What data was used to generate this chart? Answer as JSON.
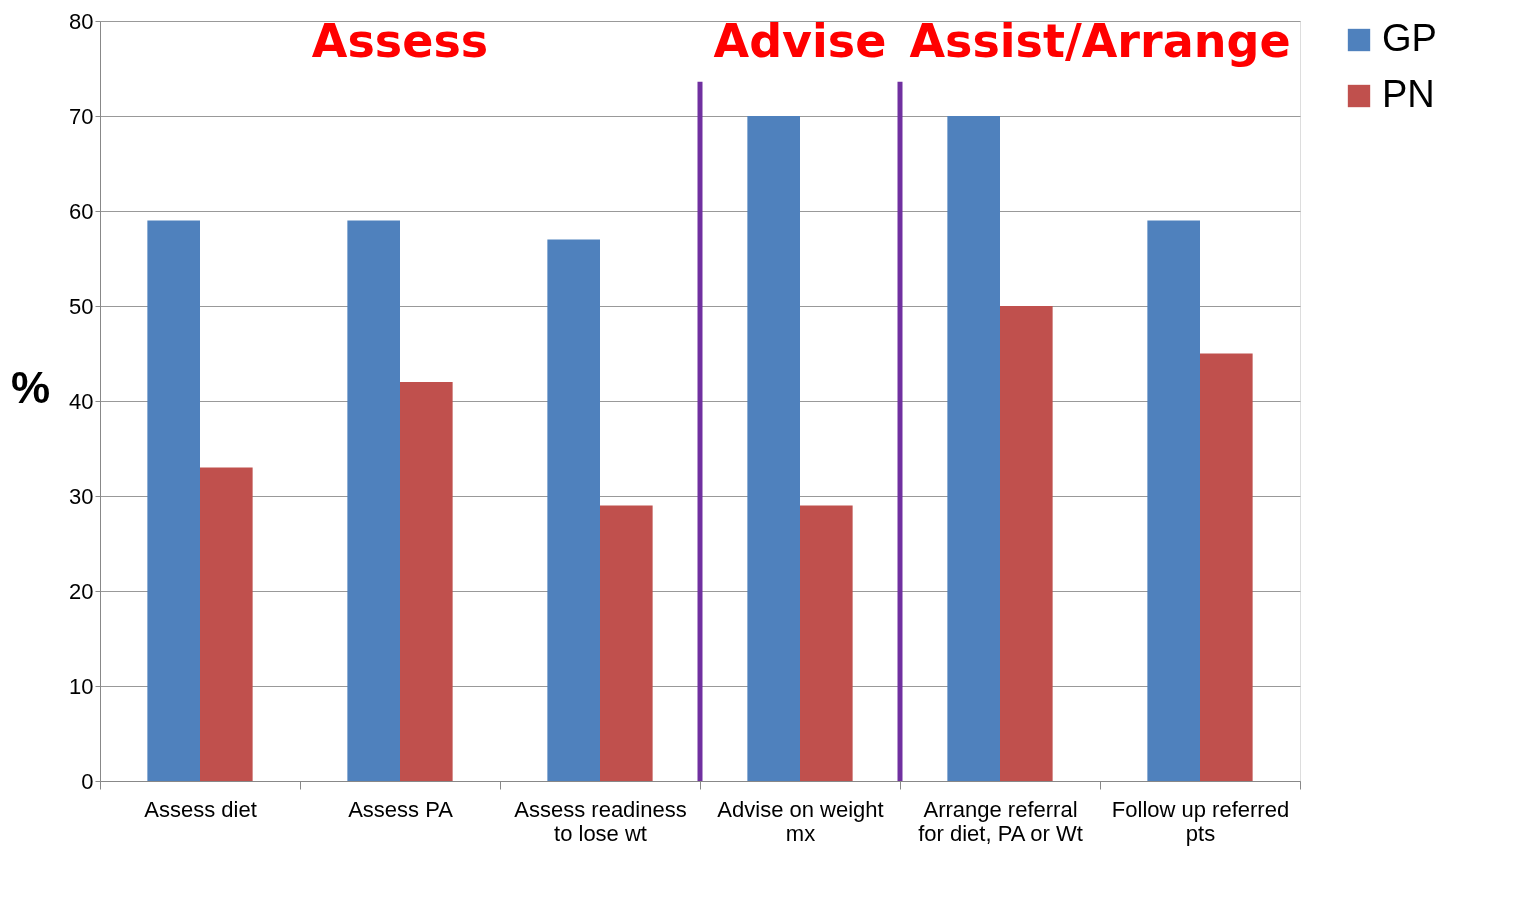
{
  "chart_data": {
    "type": "bar",
    "ylabel": "%",
    "categories": [
      "Assess diet",
      "Assess PA",
      "Assess readiness to lose wt",
      "Advise on weight mx",
      "Arrange referral for diet, PA or Wt",
      "Follow up referred pts"
    ],
    "series": [
      {
        "name": "GP",
        "color": "#4f81bd",
        "values": [
          59,
          59,
          57,
          70,
          70,
          59
        ]
      },
      {
        "name": "PN",
        "color": "#c0504d",
        "values": [
          33,
          42,
          29,
          29,
          50,
          45
        ]
      }
    ],
    "ylim": [
      0,
      80
    ],
    "yticks": [
      0,
      10,
      20,
      30,
      40,
      50,
      60,
      70,
      80
    ],
    "grid": "y",
    "legend": "right",
    "annotations": [
      "Assess",
      "Advise",
      "Assist/Arrange"
    ]
  }
}
